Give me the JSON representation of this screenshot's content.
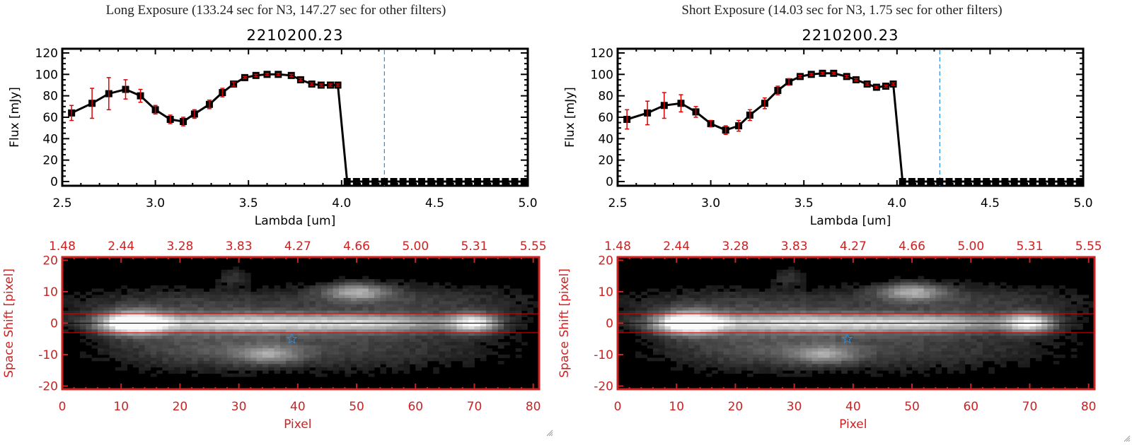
{
  "panels": [
    {
      "heading": "Long Exposure (133.24 sec for N3, 147.27 sec for other filters)",
      "title": "2210200.23",
      "spectrum": {
        "xlabel": "Lambda [um]",
        "ylabel": "Flux [mJy]",
        "xlim": [
          2.5,
          5.0
        ],
        "ylim": [
          -3,
          123
        ],
        "xticks": [
          "2.5",
          "3.0",
          "3.5",
          "4.0",
          "4.5",
          "5.0"
        ],
        "yticks": [
          "0",
          "20",
          "40",
          "60",
          "80",
          "100",
          "120"
        ],
        "marker_line_lambda": 4.23
      },
      "image": {
        "xlabel": "Pixel",
        "ylabel": "Space Shift [pixel]",
        "xticks": [
          "0",
          "10",
          "20",
          "30",
          "40",
          "50",
          "60",
          "70",
          "80"
        ],
        "yticks": [
          "20",
          "10",
          "0",
          "-10",
          "-20"
        ],
        "top_ticks": [
          "1.48",
          "2.44",
          "3.28",
          "3.83",
          "4.27",
          "4.66",
          "5.00",
          "5.31",
          "5.55"
        ],
        "aperture": [
          -3,
          3
        ],
        "star_position": [
          39,
          -5
        ]
      }
    },
    {
      "heading": "Short Exposure (14.03 sec for N3, 1.75 sec for other filters)",
      "title": "2210200.23",
      "spectrum": {
        "xlabel": "Lambda [um]",
        "ylabel": "Flux [mJy]",
        "xlim": [
          2.5,
          5.0
        ],
        "ylim": [
          -3,
          123
        ],
        "xticks": [
          "2.5",
          "3.0",
          "3.5",
          "4.0",
          "4.5",
          "5.0"
        ],
        "yticks": [
          "0",
          "20",
          "40",
          "60",
          "80",
          "100",
          "120"
        ],
        "marker_line_lambda": 4.23
      },
      "image": {
        "xlabel": "Pixel",
        "ylabel": "Space Shift [pixel]",
        "xticks": [
          "0",
          "10",
          "20",
          "30",
          "40",
          "50",
          "60",
          "70",
          "80"
        ],
        "yticks": [
          "20",
          "10",
          "0",
          "-10",
          "-20"
        ],
        "top_ticks": [
          "1.48",
          "2.44",
          "3.28",
          "3.83",
          "4.27",
          "4.66",
          "5.00",
          "5.31",
          "5.55"
        ],
        "aperture": [
          -3,
          3
        ],
        "star_position": [
          39,
          -5
        ]
      }
    }
  ],
  "colors": {
    "data_line": "#000000",
    "error_bar": "#e00000",
    "marker_line": "#2a8de0",
    "zero_line": "#e00000",
    "image_axis": "#cc2222",
    "star": "#2a8de0"
  },
  "chart_data": [
    {
      "type": "line",
      "title": "2210200.23",
      "subtitle": "Long Exposure (133.24 sec for N3, 147.27 sec for other filters)",
      "xlabel": "Lambda [um]",
      "ylabel": "Flux [mJy]",
      "xlim": [
        2.5,
        5.0
      ],
      "ylim": [
        0,
        120
      ],
      "grid": false,
      "series": [
        {
          "name": "Flux",
          "x": [
            2.55,
            2.66,
            2.75,
            2.84,
            2.92,
            3.0,
            3.08,
            3.15,
            3.21,
            3.29,
            3.36,
            3.42,
            3.48,
            3.54,
            3.6,
            3.66,
            3.73,
            3.78,
            3.84,
            3.89,
            3.94,
            3.98,
            4.03,
            4.08,
            4.13,
            4.18,
            4.23,
            4.28,
            4.33,
            4.38,
            4.43,
            4.48,
            4.53,
            4.58,
            4.63,
            4.68,
            4.73,
            4.78,
            4.83,
            4.88,
            4.93,
            4.98
          ],
          "y": [
            64,
            73,
            82,
            86,
            80,
            67,
            58,
            56,
            63,
            72,
            83,
            91,
            97,
            99,
            100,
            100,
            99,
            95,
            91,
            90,
            90,
            90,
            0,
            0,
            0,
            0,
            0,
            0,
            0,
            0,
            0,
            0,
            0,
            0,
            0,
            0,
            0,
            0,
            0,
            0,
            0,
            0
          ],
          "err": [
            7,
            14,
            15,
            9,
            6,
            4,
            4,
            4,
            4,
            4,
            4,
            2,
            1,
            1,
            1,
            1,
            1,
            1,
            1,
            1,
            1,
            1,
            0,
            0,
            0,
            0,
            0,
            0,
            0,
            0,
            0,
            0,
            0,
            0,
            0,
            0,
            0,
            0,
            0,
            0,
            0,
            0
          ]
        }
      ],
      "annotations": [
        "vertical dashed line at 4.23 um",
        "horizontal dashed zero line"
      ]
    },
    {
      "type": "line",
      "title": "2210200.23",
      "subtitle": "Short Exposure (14.03 sec for N3, 1.75 sec for other filters)",
      "xlabel": "Lambda [um]",
      "ylabel": "Flux [mJy]",
      "xlim": [
        2.5,
        5.0
      ],
      "ylim": [
        0,
        120
      ],
      "grid": false,
      "series": [
        {
          "name": "Flux",
          "x": [
            2.55,
            2.66,
            2.75,
            2.84,
            2.92,
            3.0,
            3.08,
            3.15,
            3.21,
            3.29,
            3.36,
            3.42,
            3.48,
            3.54,
            3.6,
            3.66,
            3.73,
            3.78,
            3.84,
            3.89,
            3.94,
            3.98,
            4.03,
            4.08,
            4.13,
            4.18,
            4.23,
            4.28,
            4.33,
            4.38,
            4.43,
            4.48,
            4.53,
            4.58,
            4.63,
            4.68,
            4.73,
            4.78,
            4.83,
            4.88,
            4.93,
            4.98
          ],
          "y": [
            58,
            64,
            71,
            73,
            65,
            54,
            48,
            52,
            62,
            73,
            85,
            93,
            98,
            100,
            101,
            101,
            98,
            95,
            91,
            88,
            89,
            91,
            0,
            0,
            0,
            0,
            0,
            0,
            0,
            0,
            0,
            0,
            0,
            0,
            0,
            0,
            0,
            0,
            0,
            0,
            0,
            0
          ],
          "err": [
            9,
            11,
            12,
            8,
            5,
            3,
            4,
            5,
            5,
            5,
            4,
            3,
            1,
            1,
            1,
            1,
            1,
            1,
            1,
            1,
            1,
            1,
            0,
            0,
            0,
            0,
            0,
            0,
            0,
            0,
            0,
            0,
            0,
            0,
            0,
            0,
            0,
            0,
            0,
            0,
            0,
            0
          ]
        }
      ],
      "annotations": [
        "vertical dashed line at 4.23 um",
        "horizontal dashed zero line"
      ]
    },
    {
      "type": "heatmap",
      "title": "2D spectral image (Long Exposure)",
      "xlabel": "Pixel",
      "ylabel": "Space Shift [pixel]",
      "xlim": [
        0,
        81
      ],
      "ylim": [
        -21,
        21
      ],
      "top_axis_ticks": [
        "1.48",
        "2.44",
        "3.28",
        "3.83",
        "4.27",
        "4.66",
        "5.00",
        "5.31",
        "5.55"
      ],
      "aperture_lines": [
        -3,
        3
      ],
      "center_line": 0,
      "star_marker": [
        39,
        -5
      ]
    },
    {
      "type": "heatmap",
      "title": "2D spectral image (Short Exposure)",
      "xlabel": "Pixel",
      "ylabel": "Space Shift [pixel]",
      "xlim": [
        0,
        81
      ],
      "ylim": [
        -21,
        21
      ],
      "top_axis_ticks": [
        "1.48",
        "2.44",
        "3.28",
        "3.83",
        "4.27",
        "4.66",
        "5.00",
        "5.31",
        "5.55"
      ],
      "aperture_lines": [
        -3,
        3
      ],
      "center_line": 0,
      "star_marker": [
        39,
        -5
      ]
    }
  ]
}
